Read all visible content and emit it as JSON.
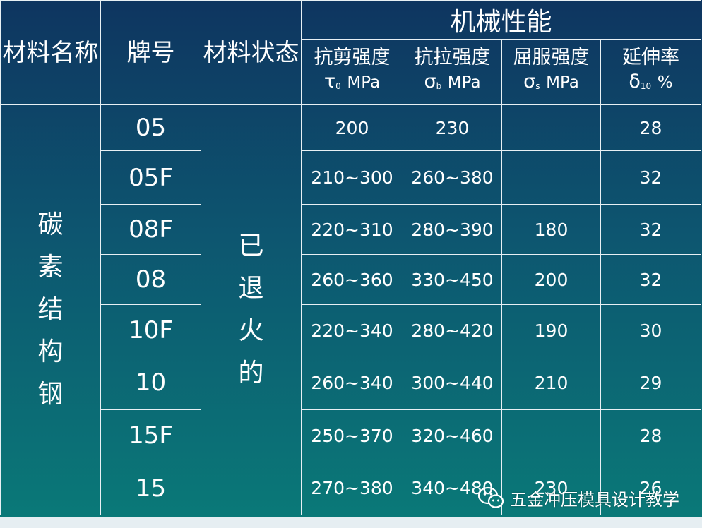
{
  "header": {
    "material_name": "材料名称",
    "grade": "牌号",
    "material_state": "材料状态",
    "mechanical_properties": "机械性能",
    "subcols": [
      {
        "name": "抗剪强度",
        "symbol": "τ",
        "sub": "0",
        "unit": "MPa"
      },
      {
        "name": "抗拉强度",
        "symbol": "σ",
        "sub": "b",
        "unit": "MPa"
      },
      {
        "name": "屈服强度",
        "symbol": "σ",
        "sub": "s",
        "unit": "MPa"
      },
      {
        "name": "延伸率",
        "symbol": "δ",
        "sub": "10",
        "unit": "%"
      }
    ]
  },
  "material_name_value": [
    "碳",
    "素",
    "结",
    "构",
    "钢"
  ],
  "material_state_value": [
    "已",
    "退",
    "火",
    "的"
  ],
  "rows": [
    {
      "grade": "05",
      "shear": "200",
      "tensile": "230",
      "yield": "",
      "elongation": "28"
    },
    {
      "grade": "05F",
      "shear": "210~300",
      "tensile": "260~380",
      "yield": "",
      "elongation": "32"
    },
    {
      "grade": "08F",
      "shear": "220~310",
      "tensile": "280~390",
      "yield": "180",
      "elongation": "32"
    },
    {
      "grade": "08",
      "shear": "260~360",
      "tensile": "330~450",
      "yield": "200",
      "elongation": "32"
    },
    {
      "grade": "10F",
      "shear": "220~340",
      "tensile": "280~420",
      "yield": "190",
      "elongation": "30"
    },
    {
      "grade": "10",
      "shear": "260~340",
      "tensile": "300~440",
      "yield": "210",
      "elongation": "29"
    },
    {
      "grade": "15F",
      "shear": "250~370",
      "tensile": "320~460",
      "yield": "",
      "elongation": "28"
    },
    {
      "grade": "15",
      "shear": "270~380",
      "tensile": "340~480",
      "yield": "230",
      "elongation": "26"
    }
  ],
  "watermark": {
    "text": "五金冲压模具设计教学",
    "icon": "wechat-icon"
  }
}
